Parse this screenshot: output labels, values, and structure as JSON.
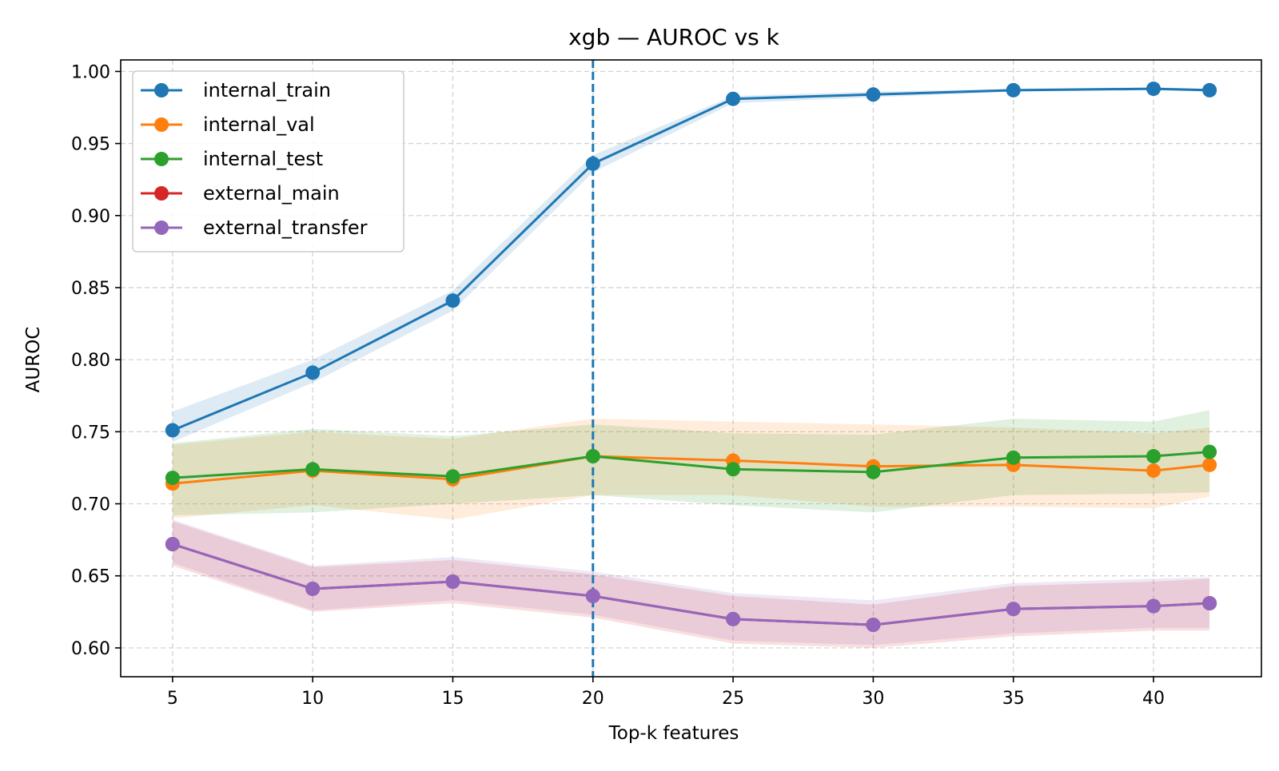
{
  "chart_data": {
    "type": "line",
    "title": "xgb — AUROC vs k",
    "xlabel": "Top-k features",
    "ylabel": "AUROC",
    "x": [
      5,
      10,
      15,
      20,
      25,
      30,
      35,
      40,
      42
    ],
    "xlim": [
      3.15,
      43.85
    ],
    "ylim": [
      0.58,
      1.008
    ],
    "xticks": [
      5,
      10,
      15,
      20,
      25,
      30,
      35,
      40
    ],
    "yticks": [
      0.6,
      0.65,
      0.7,
      0.75,
      0.8,
      0.85,
      0.9,
      0.95,
      1.0
    ],
    "ytick_labels": [
      "0.60",
      "0.65",
      "0.70",
      "0.75",
      "0.80",
      "0.85",
      "0.90",
      "0.95",
      "1.00"
    ],
    "grid": true,
    "legend_position": "upper-left",
    "vline": {
      "x": 20,
      "color": "#1f77b4",
      "style": "dashed"
    },
    "series": [
      {
        "name": "internal_train",
        "color": "#1f77b4",
        "values": [
          0.751,
          0.791,
          0.841,
          0.936,
          0.981,
          0.984,
          0.987,
          0.988,
          0.987
        ],
        "lower": [
          0.743,
          0.784,
          0.834,
          0.93,
          0.978,
          0.982,
          0.986,
          0.987,
          0.986
        ],
        "upper": [
          0.764,
          0.8,
          0.848,
          0.942,
          0.983,
          0.986,
          0.988,
          0.989,
          0.988
        ]
      },
      {
        "name": "internal_val",
        "color": "#ff7f0e",
        "values": [
          0.714,
          0.723,
          0.717,
          0.733,
          0.73,
          0.726,
          0.727,
          0.723,
          0.727
        ],
        "lower": [
          0.69,
          0.699,
          0.689,
          0.706,
          0.706,
          0.698,
          0.698,
          0.697,
          0.705
        ],
        "upper": [
          0.741,
          0.75,
          0.745,
          0.759,
          0.757,
          0.755,
          0.753,
          0.749,
          0.753
        ]
      },
      {
        "name": "internal_test",
        "color": "#2ca02c",
        "values": [
          0.718,
          0.724,
          0.719,
          0.733,
          0.724,
          0.722,
          0.732,
          0.733,
          0.736
        ],
        "lower": [
          0.692,
          0.694,
          0.7,
          0.706,
          0.699,
          0.694,
          0.706,
          0.707,
          0.708
        ],
        "upper": [
          0.742,
          0.752,
          0.747,
          0.755,
          0.749,
          0.748,
          0.759,
          0.757,
          0.765
        ]
      },
      {
        "name": "external_main",
        "color": "#d62728",
        "values": [
          0.672,
          0.641,
          0.646,
          0.636,
          0.62,
          0.616,
          0.627,
          0.629,
          0.631
        ],
        "lower": [
          0.657,
          0.625,
          0.631,
          0.621,
          0.603,
          0.6,
          0.608,
          0.612,
          0.612
        ],
        "upper": [
          0.688,
          0.656,
          0.661,
          0.651,
          0.636,
          0.63,
          0.643,
          0.646,
          0.648
        ]
      },
      {
        "name": "external_transfer",
        "color": "#9467bd",
        "values": [
          0.672,
          0.641,
          0.646,
          0.636,
          0.62,
          0.616,
          0.627,
          0.629,
          0.631
        ],
        "lower": [
          0.659,
          0.626,
          0.633,
          0.623,
          0.605,
          0.602,
          0.61,
          0.614,
          0.614
        ],
        "upper": [
          0.689,
          0.657,
          0.663,
          0.653,
          0.638,
          0.633,
          0.645,
          0.648,
          0.649
        ]
      }
    ]
  }
}
